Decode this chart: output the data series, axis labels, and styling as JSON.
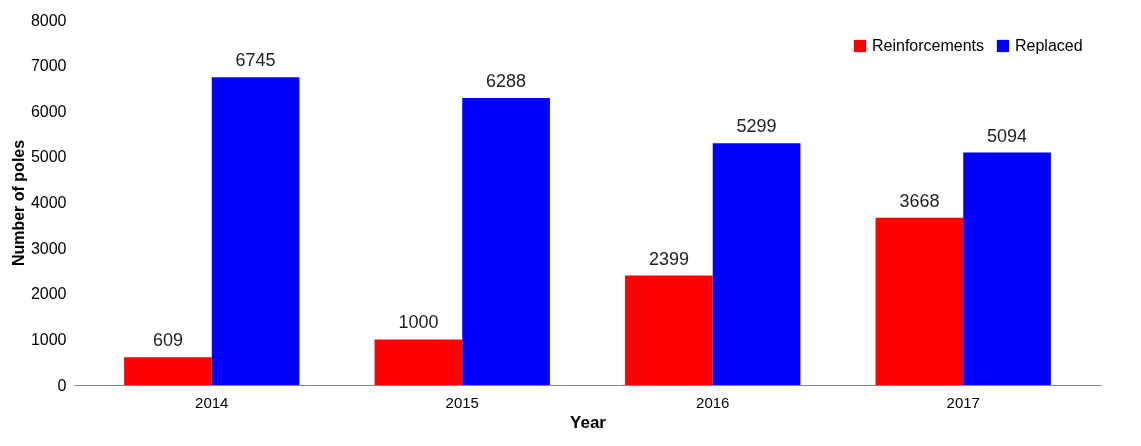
{
  "chart_data": {
    "type": "bar",
    "xlabel": "Year",
    "ylabel": "Number of poles",
    "categories": [
      "2014",
      "2015",
      "2016",
      "2017"
    ],
    "series": [
      {
        "name": "Reinforcements",
        "color": "#ff0000",
        "values": [
          609,
          1000,
          2399,
          3668
        ]
      },
      {
        "name": "Replaced",
        "color": "#0000ff",
        "values": [
          6745,
          6288,
          5299,
          5094
        ]
      }
    ],
    "ylim": [
      0,
      8000
    ],
    "yticks": [
      0,
      1000,
      2000,
      3000,
      4000,
      5000,
      6000,
      7000,
      8000
    ],
    "grid": false,
    "legend": "top right",
    "data_labels": true
  }
}
